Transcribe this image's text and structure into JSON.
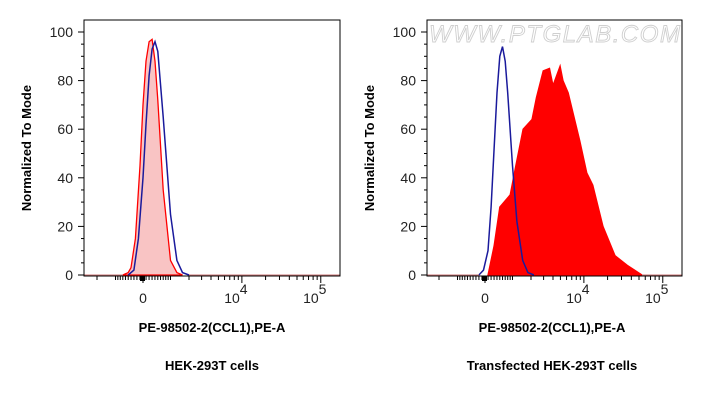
{
  "watermark": "WWW.PTGLAB.COM",
  "colors": {
    "sample": "#ff0000",
    "sample_fill_light": "#f9c4c4",
    "control": "#1a1a9c",
    "axis": "#000000"
  },
  "chart_data": [
    {
      "type": "area",
      "subtitle": "HEK-293T cells",
      "xlabel": "PE-98502-2(CCL1),PE-A",
      "ylabel": "Normalized To Mode",
      "x_scale": "biexponential",
      "xlim": [
        -3000,
        174000
      ],
      "ylim": [
        0,
        100
      ],
      "y_ticks": [
        0,
        20,
        40,
        60,
        80,
        100
      ],
      "x_ticks": [
        {
          "value": 0,
          "base": "0",
          "exp": ""
        },
        {
          "value": 10000,
          "base": "10",
          "exp": "4"
        },
        {
          "value": 100000,
          "base": "10",
          "exp": "5"
        }
      ],
      "grid": false,
      "series": [
        {
          "role": "sample",
          "style": "light-filled-red",
          "x": [
            -700,
            -500,
            -400,
            -250,
            -100,
            0,
            100,
            200,
            300,
            400,
            500,
            700,
            1000,
            1300,
            1600
          ],
          "y": [
            0,
            1,
            3,
            15,
            45,
            70,
            88,
            96,
            97,
            88,
            72,
            35,
            6,
            1,
            0
          ]
        },
        {
          "role": "control",
          "style": "blue-line",
          "x": [
            -500,
            -300,
            -150,
            0,
            100,
            200,
            300,
            400,
            500,
            700,
            1000,
            1300,
            1600,
            2000
          ],
          "y": [
            0,
            2,
            15,
            40,
            62,
            82,
            93,
            96,
            92,
            65,
            25,
            6,
            1,
            0
          ]
        }
      ]
    },
    {
      "type": "area",
      "subtitle": "Transfected HEK-293T cells",
      "xlabel": "PE-98502-2(CCL1),PE-A",
      "ylabel": "Normalized To Mode",
      "x_scale": "biexponential",
      "xlim": [
        -3000,
        174000
      ],
      "ylim": [
        0,
        100
      ],
      "y_ticks": [
        0,
        20,
        40,
        60,
        80,
        100
      ],
      "x_ticks": [
        {
          "value": 0,
          "base": "0",
          "exp": ""
        },
        {
          "value": 10000,
          "base": "10",
          "exp": "4"
        },
        {
          "value": 100000,
          "base": "10",
          "exp": "5"
        }
      ],
      "grid": false,
      "series": [
        {
          "role": "sample",
          "style": "solid-filled-red",
          "x": [
            100,
            300,
            500,
            900,
            1150,
            1520,
            2070,
            2390,
            2960,
            3600,
            4000,
            4950,
            5400,
            6300,
            8900,
            10900,
            13000,
            17500,
            24800,
            35400,
            54600
          ],
          "y": [
            0,
            12,
            28,
            33,
            45,
            60,
            64,
            73,
            84,
            85,
            78,
            86,
            80,
            75,
            55,
            42,
            37,
            20,
            8,
            4,
            0
          ]
        },
        {
          "role": "control",
          "style": "blue-line",
          "x": [
            -200,
            -50,
            100,
            200,
            300,
            400,
            500,
            600,
            700,
            800,
            1000,
            1200,
            1500,
            1800,
            2200
          ],
          "y": [
            0,
            2,
            10,
            28,
            52,
            75,
            90,
            94,
            88,
            75,
            45,
            22,
            6,
            1,
            0
          ]
        }
      ]
    }
  ]
}
